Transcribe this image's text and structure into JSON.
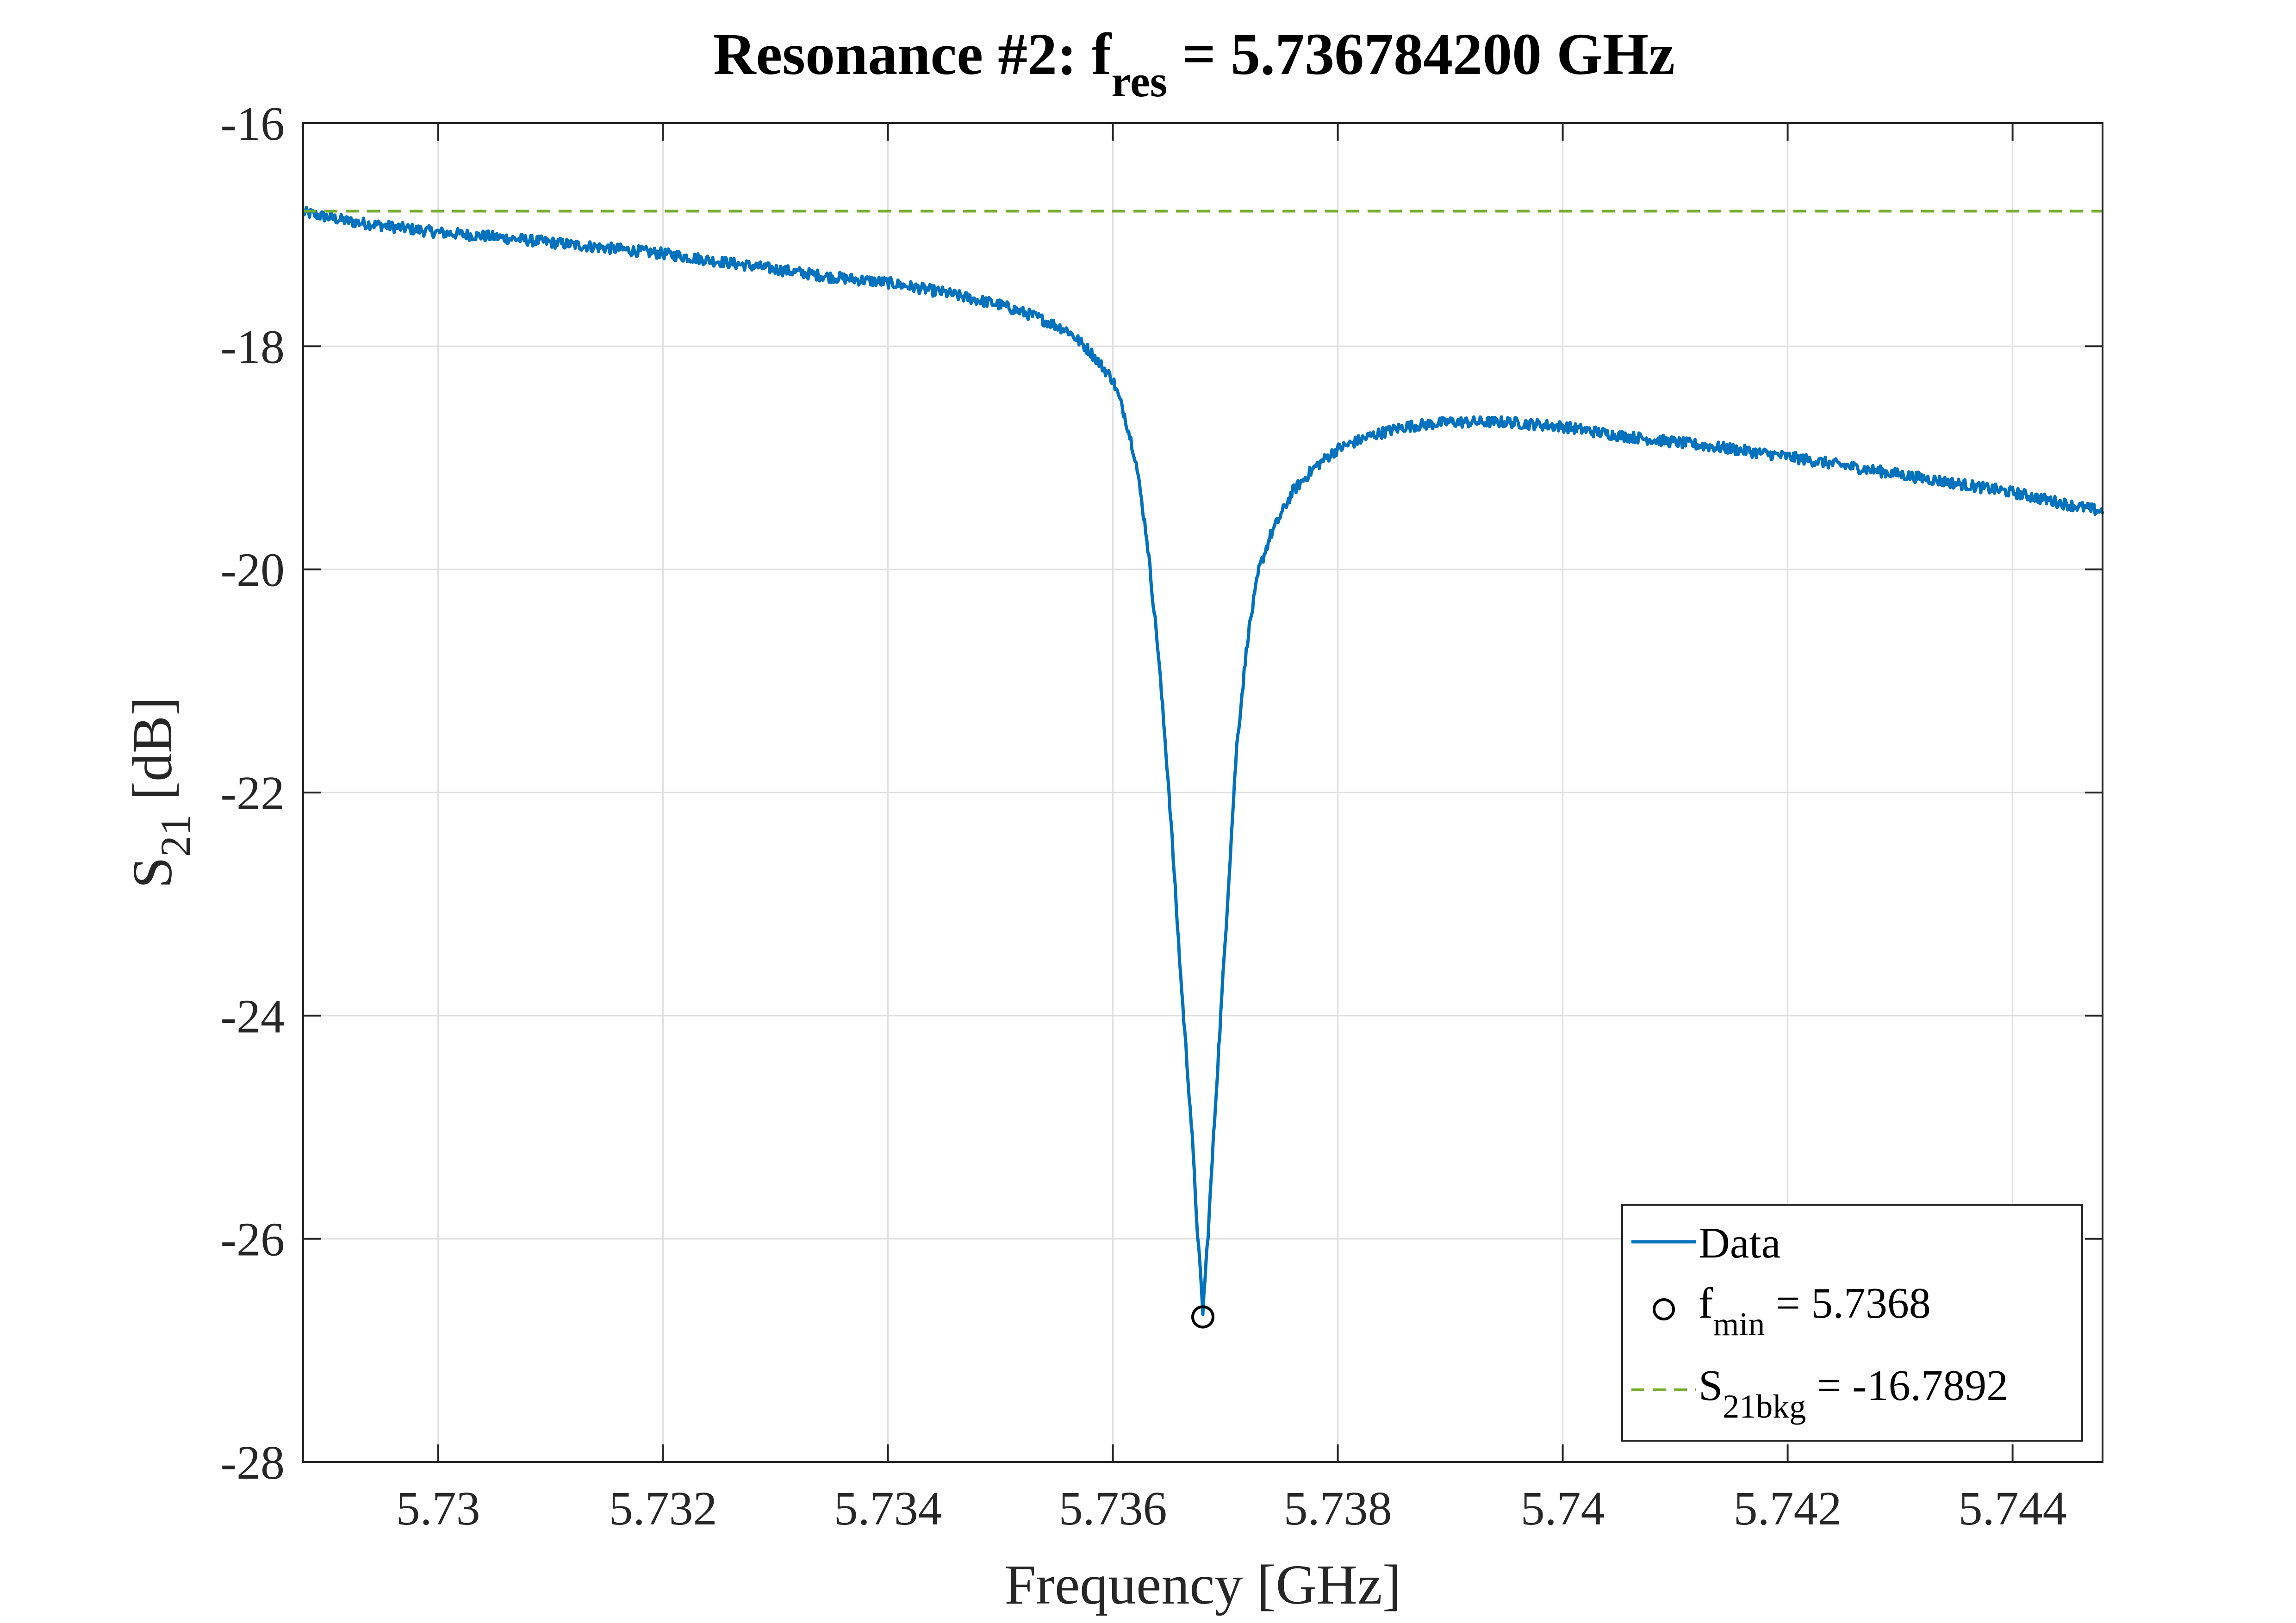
{
  "chart_data": {
    "type": "line",
    "title": {
      "main": "Resonance #2: f",
      "subscript": "res",
      "suffix": " = 5.736784200 GHz"
    },
    "xlabel": "Frequency [GHz]",
    "ylabel": {
      "main": "S",
      "subscript": "21",
      "suffix": " [dB]"
    },
    "xlim": [
      5.7288,
      5.7448
    ],
    "ylim": [
      -28,
      -16
    ],
    "x_ticks": [
      5.73,
      5.732,
      5.734,
      5.736,
      5.738,
      5.74,
      5.742,
      5.744
    ],
    "x_tick_labels": [
      "5.73",
      "5.732",
      "5.734",
      "5.736",
      "5.738",
      "5.74",
      "5.742",
      "5.744"
    ],
    "y_ticks": [
      -28,
      -26,
      -24,
      -22,
      -20,
      -18,
      -16
    ],
    "y_tick_labels": [
      "-28",
      "-26",
      "-24",
      "-22",
      "-20",
      "-18",
      "-16"
    ],
    "grid": true,
    "legend_position": "bottom-right",
    "series": [
      {
        "name": "Data",
        "kind": "line",
        "color": "#0072BD",
        "noise_amplitude_db": 0.05,
        "x": [
          5.7288,
          5.7292,
          5.7296,
          5.73,
          5.7305,
          5.731,
          5.7315,
          5.732,
          5.7325,
          5.733,
          5.7335,
          5.734,
          5.7345,
          5.735,
          5.7353,
          5.7356,
          5.7358,
          5.736,
          5.7361,
          5.7362,
          5.7363,
          5.7364,
          5.7365,
          5.7366,
          5.7367,
          5.73675,
          5.7368,
          5.73685,
          5.7369,
          5.737,
          5.7371,
          5.7372,
          5.7373,
          5.7374,
          5.7376,
          5.7378,
          5.738,
          5.7383,
          5.7386,
          5.739,
          5.7395,
          5.74,
          5.7405,
          5.741,
          5.7415,
          5.742,
          5.7425,
          5.743,
          5.7435,
          5.744,
          5.7445,
          5.7448
        ],
        "y": [
          -16.8,
          -16.88,
          -16.93,
          -16.98,
          -17.02,
          -17.07,
          -17.12,
          -17.17,
          -17.24,
          -17.31,
          -17.38,
          -17.43,
          -17.52,
          -17.63,
          -17.73,
          -17.86,
          -18.05,
          -18.3,
          -18.6,
          -19.0,
          -19.7,
          -20.7,
          -22.0,
          -23.6,
          -25.0,
          -25.9,
          -26.65,
          -25.9,
          -25.0,
          -23.3,
          -21.6,
          -20.6,
          -20.0,
          -19.7,
          -19.3,
          -19.08,
          -18.92,
          -18.8,
          -18.72,
          -18.68,
          -18.68,
          -18.72,
          -18.8,
          -18.86,
          -18.92,
          -18.99,
          -19.07,
          -19.15,
          -19.23,
          -19.31,
          -19.42,
          -19.48
        ]
      },
      {
        "name": "f_min = 5.7368",
        "kind": "marker",
        "marker": "circle",
        "color": "#000000",
        "x": [
          5.7368
        ],
        "y": [
          -26.7
        ]
      },
      {
        "name": "S_21bkg = -16.7892",
        "kind": "dashed-line",
        "color": "#77AC30",
        "x": [
          5.7288,
          5.7448
        ],
        "y": [
          -16.7892,
          -16.7892
        ]
      }
    ],
    "legend": [
      {
        "key": "data",
        "text": "Data"
      },
      {
        "key": "fmin",
        "main": "f",
        "subscript": "min",
        "suffix": " = 5.7368"
      },
      {
        "key": "bkg",
        "main": "S",
        "subscript": "21bkg",
        "suffix": " = -16.7892"
      }
    ]
  }
}
